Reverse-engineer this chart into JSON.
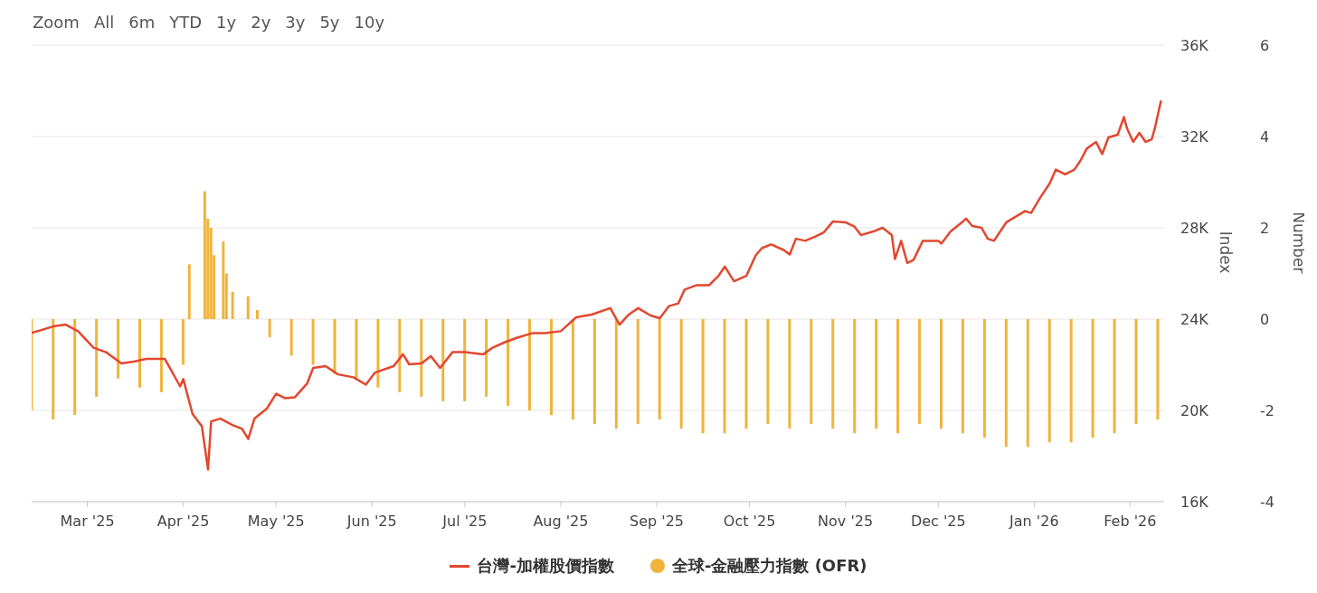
{
  "chart_data": {
    "type": "line",
    "ylabel": "Index",
    "y2label": "Number",
    "annotations": [
      "Zoom",
      "All",
      "6m",
      "YTD",
      "1y",
      "2y",
      "3y",
      "5y",
      "10y"
    ],
    "xlim": [
      "2025-02-11",
      "2026-02-12"
    ],
    "xticks": [
      {
        "value": "2025-03-01",
        "label": "Mar '25"
      },
      {
        "value": "2025-04-01",
        "label": "Apr '25"
      },
      {
        "value": "2025-05-01",
        "label": "May '25"
      },
      {
        "value": "2025-06-01",
        "label": "Jun '25"
      },
      {
        "value": "2025-07-01",
        "label": "Jul '25"
      },
      {
        "value": "2025-08-01",
        "label": "Aug '25"
      },
      {
        "value": "2025-09-01",
        "label": "Sep '25"
      },
      {
        "value": "2025-10-01",
        "label": "Oct '25"
      },
      {
        "value": "2025-11-01",
        "label": "Nov '25"
      },
      {
        "value": "2025-12-01",
        "label": "Dec '25"
      },
      {
        "value": "2026-01-01",
        "label": "Jan '26"
      },
      {
        "value": "2026-02-01",
        "label": "Feb '26"
      }
    ],
    "ylim": [
      16000,
      36000
    ],
    "yticks": [
      {
        "value": 16000,
        "label": "16K"
      },
      {
        "value": 20000,
        "label": "20K"
      },
      {
        "value": 24000,
        "label": "24K"
      },
      {
        "value": 28000,
        "label": "28K"
      },
      {
        "value": 32000,
        "label": "32K"
      },
      {
        "value": 36000,
        "label": "36K"
      }
    ],
    "y2lim": [
      -4,
      6
    ],
    "y2ticks": [
      -4,
      -2,
      0,
      2,
      4,
      6
    ],
    "grid": "y",
    "legend": "bottom",
    "marker": "none",
    "line_style": "solid",
    "series": [
      {
        "name": "台灣-加權股價指數",
        "color": "#e2472f",
        "x": [
          "2025-02-11",
          "2025-02-18",
          "2025-02-22",
          "2025-02-26",
          "2025-03-03",
          "2025-03-07",
          "2025-03-12",
          "2025-03-16",
          "2025-03-20",
          "2025-03-26",
          "2025-03-31",
          "2025-04-01",
          "2025-04-04",
          "2025-04-07",
          "2025-04-09",
          "2025-04-10",
          "2025-04-13",
          "2025-04-17",
          "2025-04-20",
          "2025-04-22",
          "2025-04-24",
          "2025-04-28",
          "2025-05-01",
          "2025-05-04",
          "2025-05-07",
          "2025-05-11",
          "2025-05-13",
          "2025-05-17",
          "2025-05-21",
          "2025-05-26",
          "2025-05-30",
          "2025-06-02",
          "2025-06-08",
          "2025-06-11",
          "2025-06-13",
          "2025-06-17",
          "2025-06-20",
          "2025-06-23",
          "2025-06-27",
          "2025-07-01",
          "2025-07-07",
          "2025-07-10",
          "2025-07-14",
          "2025-07-18",
          "2025-07-23",
          "2025-07-27",
          "2025-08-01",
          "2025-08-06",
          "2025-08-11",
          "2025-08-17",
          "2025-08-20",
          "2025-08-23",
          "2025-08-26",
          "2025-08-30",
          "2025-09-02",
          "2025-09-05",
          "2025-09-08",
          "2025-09-10",
          "2025-09-14",
          "2025-09-18",
          "2025-09-21",
          "2025-09-23",
          "2025-09-26",
          "2025-09-30",
          "2025-10-03",
          "2025-10-05",
          "2025-10-08",
          "2025-10-12",
          "2025-10-14",
          "2025-10-16",
          "2025-10-19",
          "2025-10-22",
          "2025-10-25",
          "2025-10-28",
          "2025-11-01",
          "2025-11-04",
          "2025-11-06",
          "2025-11-10",
          "2025-11-13",
          "2025-11-16",
          "2025-11-17",
          "2025-11-19",
          "2025-11-21",
          "2025-11-23",
          "2025-11-26",
          "2025-12-01",
          "2025-12-02",
          "2025-12-05",
          "2025-12-09",
          "2025-12-10",
          "2025-12-12",
          "2025-12-15",
          "2025-12-17",
          "2025-12-19",
          "2025-12-23",
          "2025-12-29",
          "2025-12-31",
          "2026-01-03",
          "2026-01-06",
          "2026-01-08",
          "2026-01-11",
          "2026-01-14",
          "2026-01-16",
          "2026-01-18",
          "2026-01-21",
          "2026-01-23",
          "2026-01-25",
          "2026-01-28",
          "2026-01-30",
          "2026-01-31",
          "2026-02-02",
          "2026-02-04",
          "2026-02-06",
          "2026-02-08",
          "2026-02-09",
          "2026-02-11"
        ],
        "values": [
          23390,
          23680,
          23760,
          23470,
          22750,
          22550,
          22060,
          22140,
          22260,
          22260,
          21050,
          21370,
          19840,
          19310,
          17410,
          19520,
          19640,
          19350,
          19190,
          18750,
          19640,
          20080,
          20730,
          20530,
          20570,
          21170,
          21860,
          21940,
          21580,
          21450,
          21130,
          21660,
          21940,
          22460,
          22020,
          22060,
          22380,
          21860,
          22550,
          22550,
          22460,
          22750,
          22990,
          23190,
          23390,
          23390,
          23470,
          24080,
          24200,
          24480,
          23760,
          24200,
          24480,
          24160,
          24040,
          24570,
          24690,
          25290,
          25490,
          25490,
          25900,
          26300,
          25660,
          25900,
          26790,
          27110,
          27270,
          27030,
          26830,
          27520,
          27430,
          27600,
          27800,
          28280,
          28240,
          28040,
          27680,
          27840,
          28000,
          27680,
          26630,
          27430,
          26460,
          26590,
          27430,
          27430,
          27310,
          27840,
          28280,
          28400,
          28080,
          28000,
          27520,
          27430,
          28240,
          28730,
          28650,
          29330,
          29940,
          30550,
          30340,
          30550,
          30950,
          31470,
          31760,
          31230,
          31960,
          32080,
          32850,
          32360,
          31760,
          32160,
          31760,
          31880,
          32360,
          33580
        ]
      },
      {
        "name": "全球-金融壓力指數 (OFR)",
        "type": "bar",
        "axis": "y2",
        "color": "#f0b43c",
        "x": [
          "2025-02-11",
          "2025-02-18",
          "2025-02-25",
          "2025-03-04",
          "2025-03-11",
          "2025-03-18",
          "2025-03-25",
          "2025-04-01",
          "2025-04-03",
          "2025-04-08",
          "2025-04-09",
          "2025-04-10",
          "2025-04-11",
          "2025-04-14",
          "2025-04-15",
          "2025-04-17",
          "2025-04-22",
          "2025-04-25",
          "2025-04-29",
          "2025-05-06",
          "2025-05-13",
          "2025-05-20",
          "2025-05-27",
          "2025-06-03",
          "2025-06-10",
          "2025-06-17",
          "2025-06-24",
          "2025-07-01",
          "2025-07-08",
          "2025-07-15",
          "2025-07-22",
          "2025-07-29",
          "2025-08-05",
          "2025-08-12",
          "2025-08-19",
          "2025-08-26",
          "2025-09-02",
          "2025-09-09",
          "2025-09-16",
          "2025-09-23",
          "2025-09-30",
          "2025-10-07",
          "2025-10-14",
          "2025-10-21",
          "2025-10-28",
          "2025-11-04",
          "2025-11-11",
          "2025-11-18",
          "2025-11-25",
          "2025-12-02",
          "2025-12-09",
          "2025-12-16",
          "2025-12-23",
          "2025-12-30",
          "2026-01-06",
          "2026-01-13",
          "2026-01-20",
          "2026-01-27",
          "2026-02-03",
          "2026-02-10"
        ],
        "values": [
          -2.0,
          -2.2,
          -2.1,
          -1.7,
          -1.3,
          -1.5,
          -1.6,
          -1.0,
          1.2,
          2.8,
          2.2,
          2.0,
          1.4,
          1.7,
          1.0,
          0.6,
          0.5,
          0.2,
          -0.4,
          -0.8,
          -1.0,
          -1.2,
          -1.3,
          -1.5,
          -1.6,
          -1.7,
          -1.8,
          -1.8,
          -1.7,
          -1.9,
          -2.0,
          -2.1,
          -2.2,
          -2.3,
          -2.4,
          -2.3,
          -2.2,
          -2.4,
          -2.5,
          -2.5,
          -2.4,
          -2.3,
          -2.4,
          -2.3,
          -2.4,
          -2.5,
          -2.4,
          -2.5,
          -2.3,
          -2.4,
          -2.5,
          -2.6,
          -2.8,
          -2.8,
          -2.7,
          -2.7,
          -2.6,
          -2.5,
          -2.3,
          -2.2
        ]
      }
    ]
  }
}
